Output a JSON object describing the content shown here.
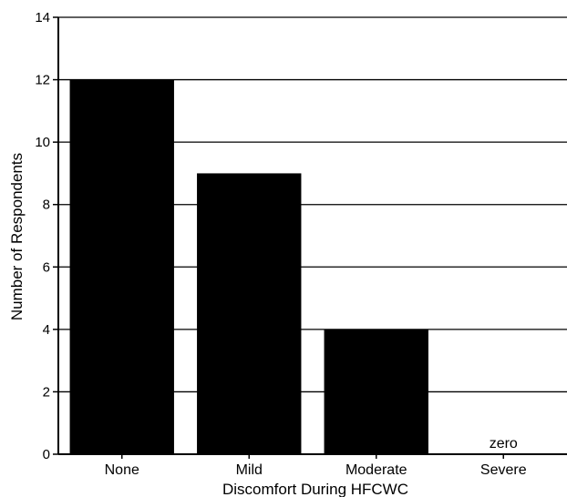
{
  "chart_data": {
    "type": "bar",
    "categories": [
      "None",
      "Mild",
      "Moderate",
      "Severe"
    ],
    "values": [
      12,
      9,
      4,
      0
    ],
    "xlabel": "Discomfort During HFCWC",
    "ylabel": "Number of Respondents",
    "ylim": [
      0,
      14
    ],
    "yticks": [
      0,
      2,
      4,
      6,
      8,
      10,
      12,
      14
    ],
    "grid": true,
    "legend": "none",
    "bar_color": "#000000",
    "annotations": [
      {
        "category": "Severe",
        "text": "zero"
      }
    ]
  }
}
